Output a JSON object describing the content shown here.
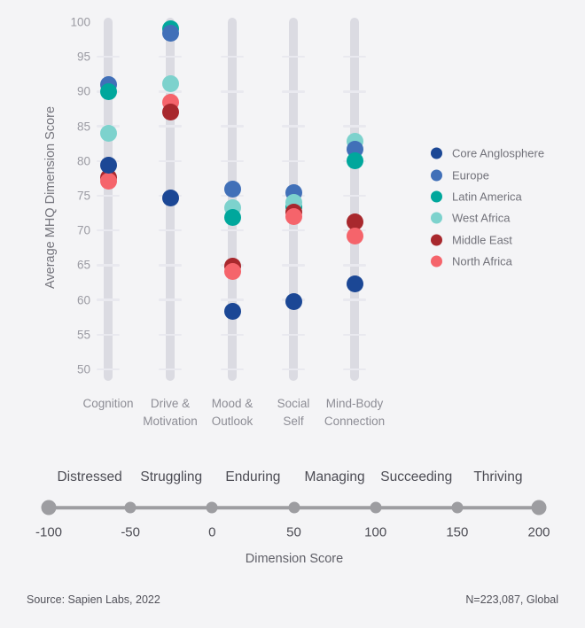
{
  "background": "#f4f4f6",
  "y_axis": {
    "title": "Average MHQ Dimension Score",
    "min": 50,
    "max": 100,
    "tick_step": 5,
    "ticks": [
      100,
      95,
      90,
      85,
      80,
      75,
      70,
      65,
      60,
      55,
      50
    ]
  },
  "chart_data": {
    "type": "scatter",
    "title": "",
    "ylabel": "Average MHQ Dimension Score",
    "ylim": [
      50,
      100
    ],
    "grid": false,
    "legend_position": "right",
    "categories": [
      "Cognition",
      "Drive & Motivation",
      "Mood & Outlook",
      "Social Self",
      "Mind-Body Connection"
    ],
    "category_label_lines": [
      [
        "Cognition"
      ],
      [
        "Drive &",
        "Motivation"
      ],
      [
        "Mood &",
        "Outlook"
      ],
      [
        "Social",
        "Self"
      ],
      [
        "Mind-Body",
        "Connection"
      ]
    ],
    "series": [
      {
        "name": "Core Anglosphere",
        "color": "#1b4795",
        "values": [
          79.4,
          74.7,
          58.4,
          59.7,
          62.3
        ]
      },
      {
        "name": "Europe",
        "color": "#4170b8",
        "values": [
          91.0,
          98.4,
          76.0,
          75.5,
          81.7
        ]
      },
      {
        "name": "Latin America",
        "color": "#00a79c",
        "values": [
          90.0,
          99.0,
          71.9,
          73.4,
          80.1
        ]
      },
      {
        "name": "West Africa",
        "color": "#7dd2cd",
        "values": [
          84.0,
          91.1,
          73.3,
          74.0,
          82.9
        ]
      },
      {
        "name": "Middle East",
        "color": "#a8282d",
        "values": [
          77.6,
          87.0,
          64.9,
          72.7,
          71.2
        ]
      },
      {
        "name": "North Africa",
        "color": "#f5646b",
        "values": [
          77.1,
          88.5,
          64.1,
          72.0,
          69.2
        ]
      }
    ],
    "draw_order_per_category": [
      [
        1,
        2,
        4,
        5,
        3,
        0
      ],
      [
        2,
        1,
        5,
        4,
        3,
        0
      ],
      [
        1,
        3,
        2,
        4,
        5,
        0
      ],
      [
        1,
        2,
        3,
        4,
        5,
        0
      ],
      [
        3,
        1,
        2,
        4,
        5,
        0
      ]
    ]
  },
  "legend": {
    "items": [
      {
        "label": "Core Anglosphere",
        "color": "#1b4795"
      },
      {
        "label": "Europe",
        "color": "#4170b8"
      },
      {
        "label": "Latin America",
        "color": "#00a79c"
      },
      {
        "label": "West Africa",
        "color": "#7dd2cd"
      },
      {
        "label": "Middle East",
        "color": "#a8282d"
      },
      {
        "label": "North Africa",
        "color": "#f5646b"
      }
    ]
  },
  "bottom_scale": {
    "zones": [
      "Distressed",
      "Struggling",
      "Enduring",
      "Managing",
      "Succeeding",
      "Thriving"
    ],
    "ticks": [
      "-100",
      "-50",
      "0",
      "50",
      "100",
      "150",
      "200"
    ],
    "axis_label": "Dimension Score",
    "line_color": "#9d9da1"
  },
  "footer": {
    "source": "Source: Sapien Labs, 2022",
    "sample": "N=223,087, Global"
  }
}
